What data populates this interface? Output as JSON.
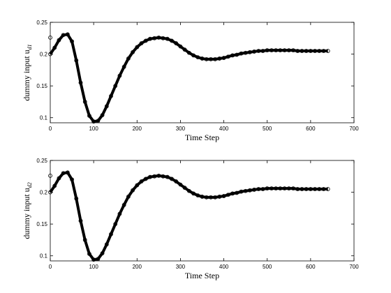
{
  "chart_data": [
    {
      "type": "scatter",
      "xlabel": "Time Step",
      "ylabel": "dummy input u",
      "ylabel_sub": "d1",
      "xlim": [
        0,
        700
      ],
      "xticks": [
        0,
        100,
        200,
        300,
        400,
        500,
        600,
        700
      ],
      "ylim": [
        0.092,
        0.25
      ],
      "yticks": [
        0.1,
        0.15,
        0.2,
        0.25
      ],
      "box": true,
      "series": [
        {
          "color": "#000000",
          "connected": false,
          "x": [
            0
          ],
          "values": [
            0.226
          ]
        },
        {
          "color": "#000000",
          "connected": true,
          "x": [
            0,
            10,
            20,
            30,
            40,
            50,
            60,
            70,
            80,
            90,
            100,
            110,
            120,
            130,
            140,
            150,
            160,
            170,
            180,
            190,
            200,
            210,
            220,
            230,
            240,
            250,
            260,
            270,
            280,
            290,
            300,
            310,
            320,
            330,
            340,
            350,
            360,
            370,
            380,
            390,
            400,
            410,
            420,
            430,
            440,
            450,
            460,
            470,
            480,
            490,
            500,
            510,
            520,
            530,
            540,
            550,
            560,
            570,
            580,
            590,
            600,
            610,
            620,
            630,
            640
          ],
          "values": [
            0.2,
            0.21,
            0.222,
            0.23,
            0.231,
            0.22,
            0.19,
            0.155,
            0.125,
            0.103,
            0.094,
            0.095,
            0.104,
            0.118,
            0.134,
            0.15,
            0.166,
            0.18,
            0.193,
            0.203,
            0.211,
            0.217,
            0.221,
            0.224,
            0.225,
            0.226,
            0.225,
            0.224,
            0.221,
            0.217,
            0.212,
            0.207,
            0.202,
            0.198,
            0.195,
            0.193,
            0.192,
            0.192,
            0.192,
            0.193,
            0.194,
            0.196,
            0.198,
            0.199,
            0.201,
            0.202,
            0.203,
            0.204,
            0.205,
            0.205,
            0.206,
            0.206,
            0.206,
            0.206,
            0.206,
            0.206,
            0.206,
            0.205,
            0.205,
            0.205,
            0.205,
            0.205,
            0.205,
            0.205,
            0.205
          ]
        }
      ]
    },
    {
      "type": "scatter",
      "xlabel": "Time Step",
      "ylabel": "dummy input u",
      "ylabel_sub": "d2",
      "xlim": [
        0,
        700
      ],
      "xticks": [
        0,
        100,
        200,
        300,
        400,
        500,
        600,
        700
      ],
      "ylim": [
        0.092,
        0.25
      ],
      "yticks": [
        0.1,
        0.15,
        0.2,
        0.25
      ],
      "box": true,
      "series": [
        {
          "color": "#000000",
          "connected": false,
          "x": [
            0
          ],
          "values": [
            0.226
          ]
        },
        {
          "color": "#000000",
          "connected": true,
          "x": [
            0,
            10,
            20,
            30,
            40,
            50,
            60,
            70,
            80,
            90,
            100,
            110,
            120,
            130,
            140,
            150,
            160,
            170,
            180,
            190,
            200,
            210,
            220,
            230,
            240,
            250,
            260,
            270,
            280,
            290,
            300,
            310,
            320,
            330,
            340,
            350,
            360,
            370,
            380,
            390,
            400,
            410,
            420,
            430,
            440,
            450,
            460,
            470,
            480,
            490,
            500,
            510,
            520,
            530,
            540,
            550,
            560,
            570,
            580,
            590,
            600,
            610,
            620,
            630,
            640
          ],
          "values": [
            0.2,
            0.21,
            0.222,
            0.23,
            0.231,
            0.22,
            0.19,
            0.155,
            0.125,
            0.103,
            0.094,
            0.095,
            0.104,
            0.118,
            0.134,
            0.15,
            0.166,
            0.18,
            0.193,
            0.203,
            0.211,
            0.217,
            0.221,
            0.224,
            0.225,
            0.226,
            0.225,
            0.224,
            0.221,
            0.217,
            0.212,
            0.207,
            0.202,
            0.198,
            0.195,
            0.193,
            0.192,
            0.192,
            0.192,
            0.193,
            0.194,
            0.196,
            0.198,
            0.199,
            0.201,
            0.202,
            0.203,
            0.204,
            0.205,
            0.205,
            0.206,
            0.206,
            0.206,
            0.206,
            0.206,
            0.206,
            0.206,
            0.205,
            0.205,
            0.205,
            0.205,
            0.205,
            0.205,
            0.205,
            0.205
          ]
        }
      ]
    }
  ]
}
